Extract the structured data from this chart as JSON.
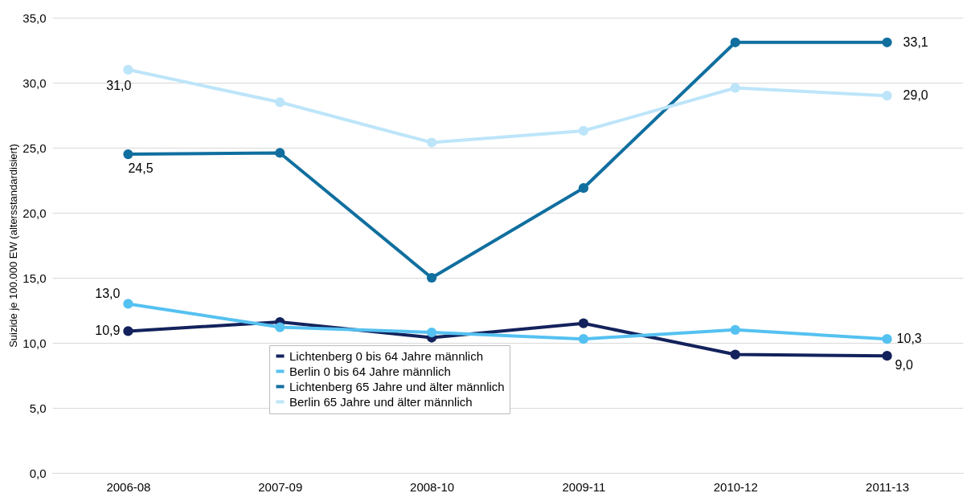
{
  "chart_data": {
    "type": "line",
    "ylabel": "Suizide je 100.000 EW (altersstandardisiert)",
    "categories": [
      "2006-08",
      "2007-09",
      "2008-10",
      "2009-11",
      "2010-12",
      "2011-13"
    ],
    "ylim": [
      0,
      35
    ],
    "yticks": [
      {
        "value": 0,
        "label": "0,0"
      },
      {
        "value": 5,
        "label": "5,0"
      },
      {
        "value": 10,
        "label": "10,0"
      },
      {
        "value": 15,
        "label": "15,0"
      },
      {
        "value": 20,
        "label": "20,0"
      },
      {
        "value": 25,
        "label": "25,0"
      },
      {
        "value": 30,
        "label": "30,0"
      },
      {
        "value": 35,
        "label": "35,0"
      }
    ],
    "grid": "y",
    "legend": "bottom",
    "marker": "circle",
    "line_style": "solid",
    "series": [
      {
        "name": "Lichtenberg 0 bis 64 Jahre männlich",
        "color": "#13225c",
        "values": [
          10.9,
          11.6,
          10.4,
          11.5,
          9.1,
          9.0
        ],
        "value_labels": [
          "10,9",
          null,
          null,
          null,
          null,
          "9,0"
        ]
      },
      {
        "name": "Berlin 0 bis 64 Jahre männlich",
        "color": "#55c1f1",
        "values": [
          13.0,
          11.2,
          10.8,
          10.3,
          11.0,
          10.3
        ],
        "value_labels": [
          "13,0",
          null,
          null,
          null,
          null,
          "10,3"
        ]
      },
      {
        "name": "Lichtenberg 65 Jahre und älter männlich",
        "color": "#106f9f",
        "values": [
          24.5,
          24.6,
          15.0,
          21.9,
          33.1,
          33.1
        ],
        "value_labels": [
          "24,5",
          null,
          null,
          null,
          null,
          "33,1"
        ]
      },
      {
        "name": "Berlin 65 Jahre und älter männlich",
        "color": "#bde5fa",
        "values": [
          31.0,
          28.5,
          25.4,
          26.3,
          29.6,
          29.0
        ],
        "value_labels": [
          "31,0",
          null,
          null,
          null,
          null,
          "29,0"
        ]
      }
    ]
  }
}
